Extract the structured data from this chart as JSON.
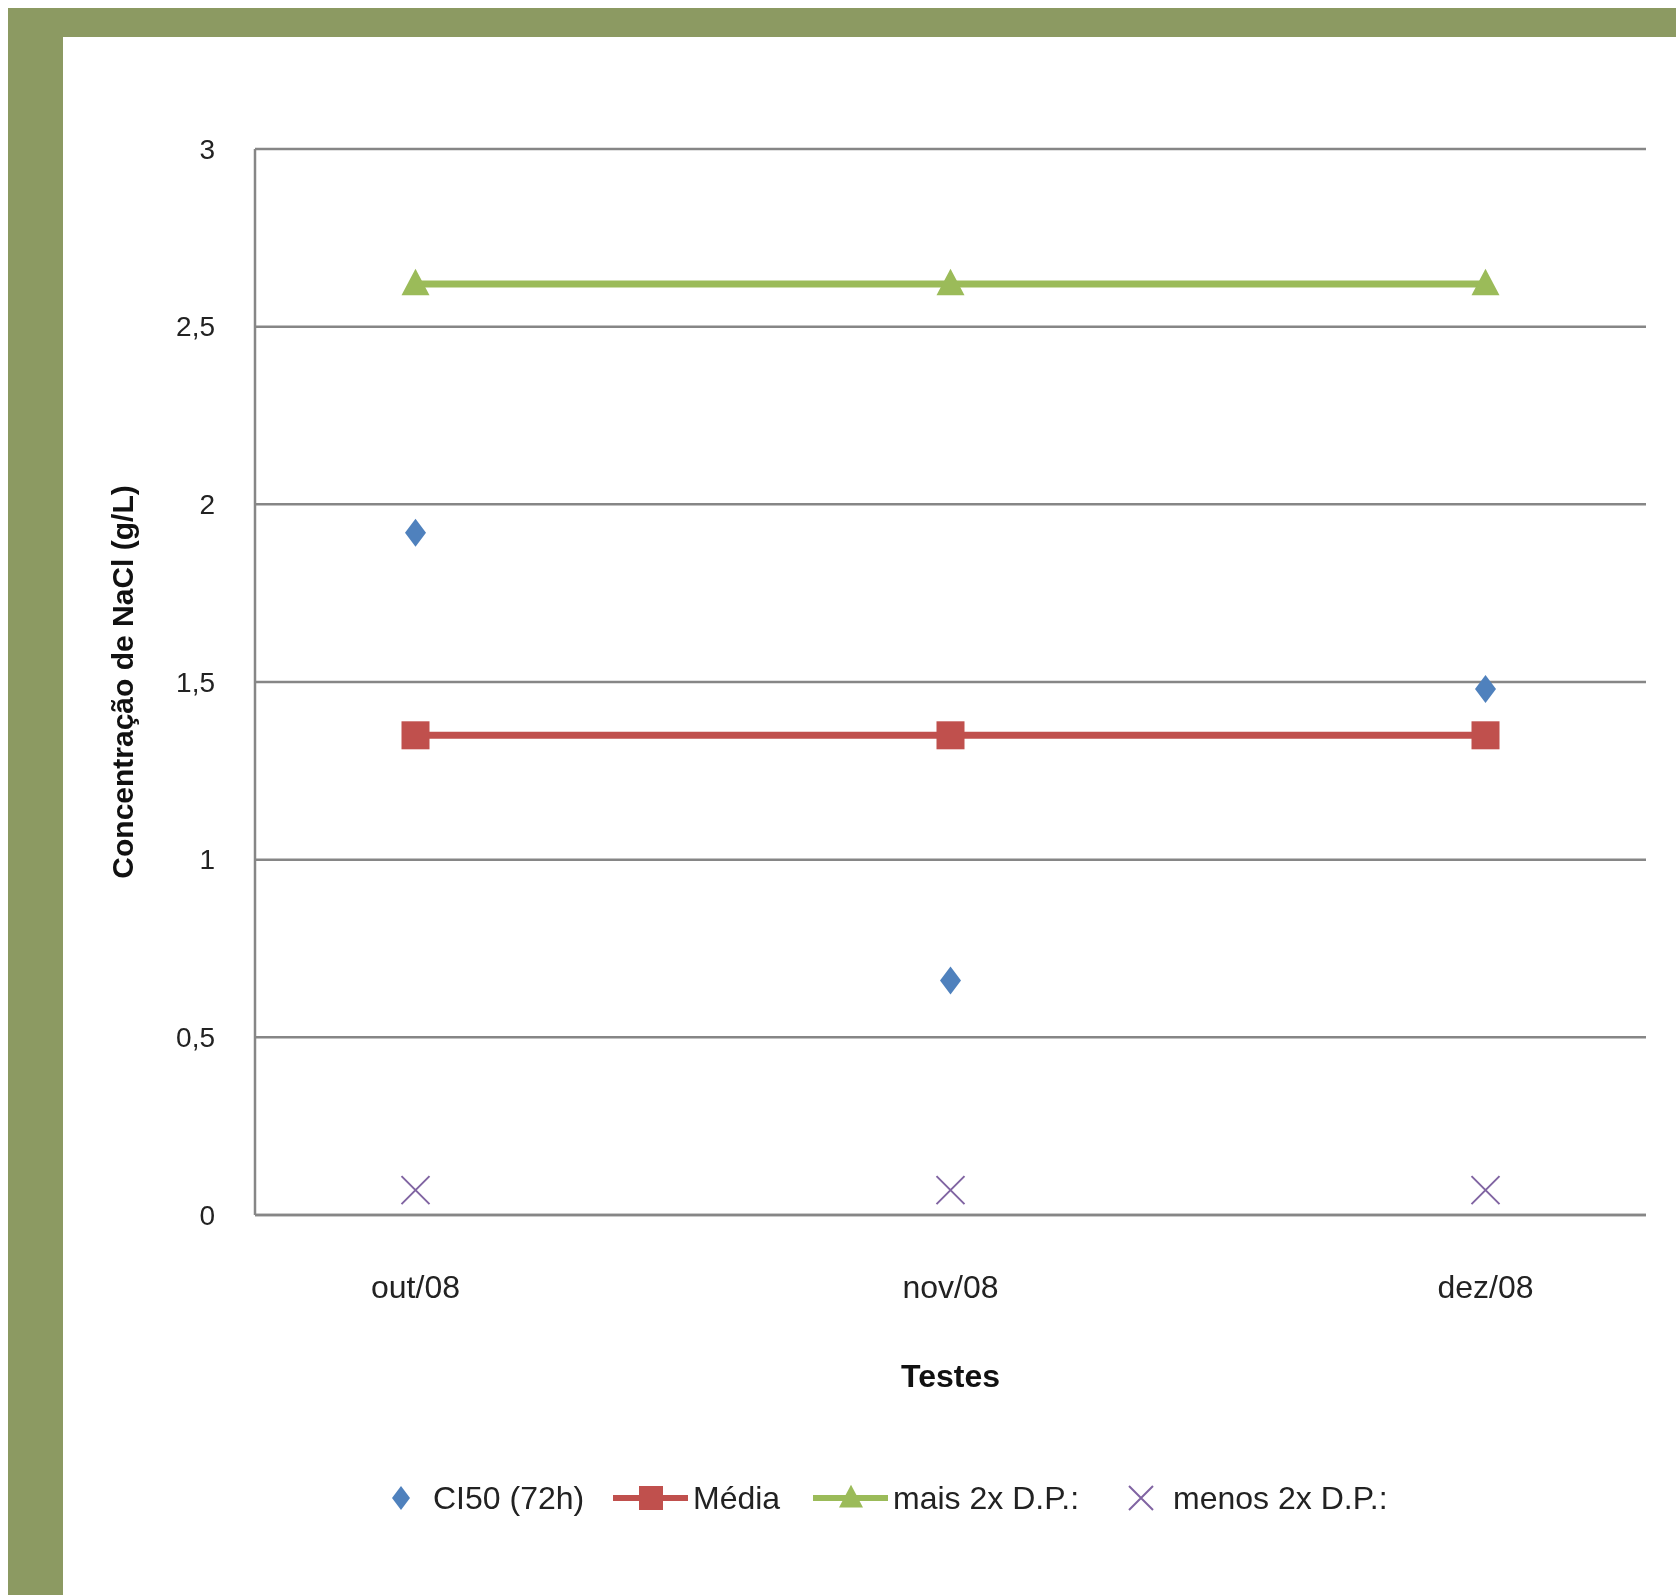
{
  "chart_data": {
    "type": "line",
    "xlabel": "Testes",
    "ylabel": "Concentração de NaCl (g/L)",
    "categories": [
      "out/08",
      "nov/08",
      "dez/08"
    ],
    "ylim": [
      0,
      3
    ],
    "yticks": [
      0,
      {
        "value": 0.5,
        "label": "0,5"
      },
      1,
      {
        "value": 1.5,
        "label": "1,5"
      },
      2,
      {
        "value": 2.5,
        "label": "2,5"
      },
      3
    ],
    "grid": "y",
    "legend": "bottom",
    "series": [
      {
        "name": "CI50 (72h)",
        "type": "scatter",
        "marker": "diamond",
        "color": "#4f81bd",
        "values": [
          1.92,
          0.66,
          1.48
        ]
      },
      {
        "name": "Média",
        "marker": "square",
        "color": "#c0504d",
        "values": [
          1.35,
          1.35,
          1.35
        ]
      },
      {
        "name": "mais 2x D.P.:",
        "marker": "triangle",
        "color": "#9bbb59",
        "values": [
          2.62,
          2.62,
          2.62
        ]
      },
      {
        "name": "menos 2x D.P.:",
        "type": "scatter",
        "marker": "cross",
        "color": "#8064a2",
        "values": [
          0.07,
          0.07,
          0.07
        ]
      }
    ]
  }
}
